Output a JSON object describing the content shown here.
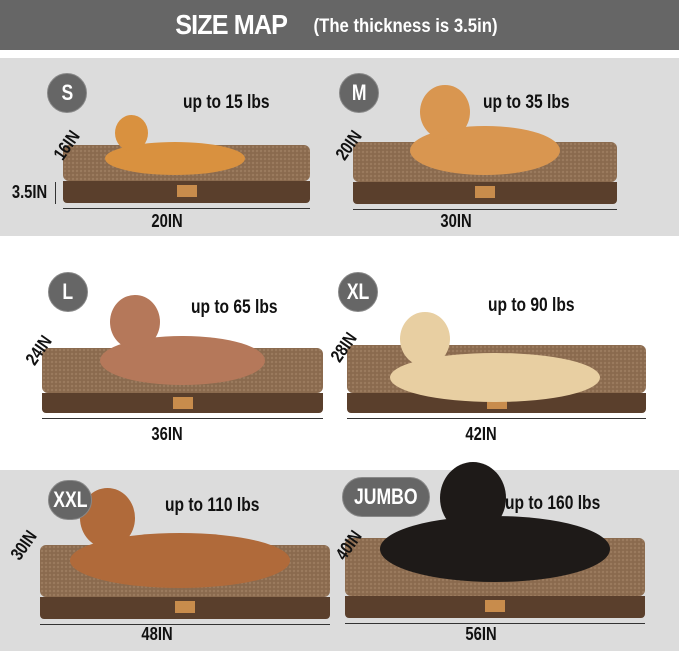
{
  "header": {
    "title": "SIZE MAP",
    "subtitle": "(The thickness is 3.5in)"
  },
  "thickness_label": "3.5IN",
  "sizes": [
    {
      "size": "S",
      "weight": "up to 15 lbs",
      "width": "20IN",
      "depth": "16IN",
      "dog_color": "#d9913f"
    },
    {
      "size": "M",
      "weight": "up to 35 lbs",
      "width": "30IN",
      "depth": "20IN",
      "dog_color": "#d99650"
    },
    {
      "size": "L",
      "weight": "up to 65 lbs",
      "width": "36IN",
      "depth": "24IN",
      "dog_color": "#b5785a"
    },
    {
      "size": "XL",
      "weight": "up to 90 lbs",
      "width": "42IN",
      "depth": "28IN",
      "dog_color": "#e8cfa2"
    },
    {
      "size": "XXL",
      "weight": "up to 110 lbs",
      "width": "48IN",
      "depth": "30IN",
      "dog_color": "#b06a3a"
    },
    {
      "size": "JUMBO",
      "weight": "up to 160 lbs",
      "width": "56IN",
      "depth": "40IN",
      "dog_color": "#1e1a18"
    }
  ],
  "colors": {
    "header": "#666666",
    "band": "#dcdcdc",
    "bed": "#8a6a4e",
    "bed_side": "#5a3f2c"
  }
}
